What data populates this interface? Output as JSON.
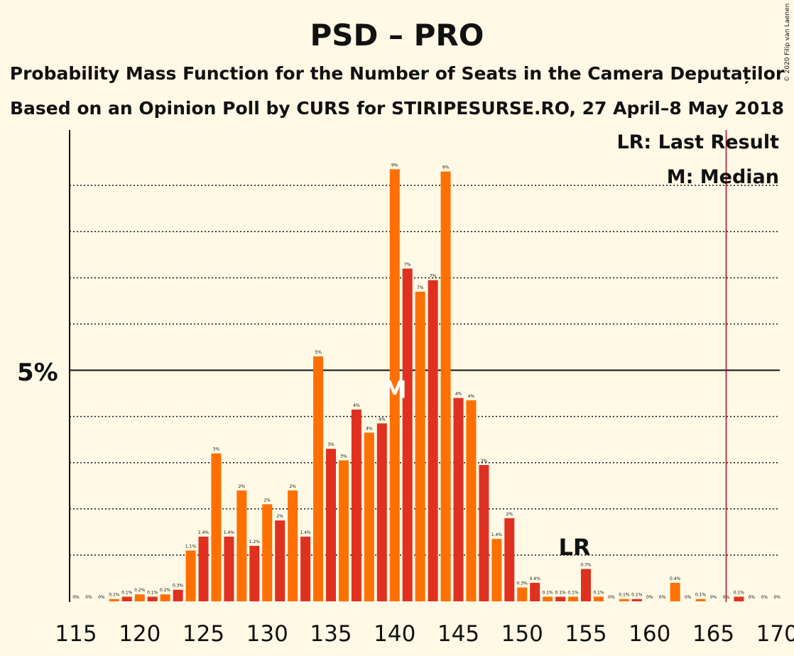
{
  "copyright": "© 2020 Filip van Laenen",
  "chart_data": {
    "type": "bar",
    "title": "PSD – PRO",
    "subtitle1": "Probability Mass Function for the Number of Seats in the Camera Deputaților",
    "subtitle2": "Based on an Opinion Poll by CURS for STIRIPESURSE.RO, 27 April–8 May 2018",
    "legend": [
      "LR: Last Result",
      "M: Median"
    ],
    "y_tick_label": "5%",
    "x_ticks": [
      "115",
      "120",
      "125",
      "130",
      "135",
      "140",
      "145",
      "150",
      "155",
      "160",
      "165",
      "170"
    ],
    "median_marker": "M",
    "median_seat": 140,
    "last_result_marker": "LR",
    "last_result_seat": 154,
    "majority_line_seat": 166,
    "ylim": [
      0,
      10.2
    ],
    "grid": true,
    "colors": {
      "odd": "#e03020",
      "even": "#ff7000",
      "majority": "#c0001a"
    },
    "seats": [
      115,
      116,
      117,
      118,
      119,
      120,
      121,
      122,
      123,
      124,
      125,
      126,
      127,
      128,
      129,
      130,
      131,
      132,
      133,
      134,
      135,
      136,
      137,
      138,
      139,
      140,
      141,
      142,
      143,
      144,
      145,
      146,
      147,
      148,
      149,
      150,
      151,
      152,
      153,
      154,
      155,
      156,
      157,
      158,
      159,
      160,
      161,
      162,
      163,
      164,
      165,
      166,
      167,
      168,
      169,
      170
    ],
    "values": [
      0,
      0,
      0,
      0.05,
      0.1,
      0.15,
      0.1,
      0.15,
      0.25,
      1.1,
      1.4,
      3.2,
      1.4,
      2.4,
      1.2,
      2.1,
      1.75,
      2.4,
      1.4,
      5.3,
      3.3,
      3.05,
      4.15,
      3.65,
      3.85,
      9.35,
      7.2,
      6.7,
      6.95,
      9.3,
      4.4,
      4.35,
      2.95,
      1.35,
      1.8,
      0.3,
      0.4,
      0.1,
      0.1,
      0.1,
      0.7,
      0.1,
      0,
      0.05,
      0.05,
      0,
      0,
      0.4,
      0,
      0.05,
      0,
      0,
      0.1,
      0,
      0,
      0
    ],
    "labels": [
      "0%",
      "0%",
      "0%",
      "0.1%",
      "0.1%",
      "0.2%",
      "0.1%",
      "0.2%",
      "0.3%",
      "1.1%",
      "1.4%",
      "3%",
      "1.4%",
      "2%",
      "1.2%",
      "2%",
      "2%",
      "2%",
      "1.4%",
      "5%",
      "3%",
      "3%",
      "4%",
      "4%",
      "4%",
      "9%",
      "7%",
      "7%",
      "7%",
      "9%",
      "4%",
      "4%",
      "3%",
      "1.4%",
      "2%",
      "0.3%",
      "0.4%",
      "0.1%",
      "0.1%",
      "0.1%",
      "0.7%",
      "0.1%",
      "0%",
      "0.1%",
      "0.1%",
      "0%",
      "0%",
      "0.4%",
      "0%",
      "0.1%",
      "0%",
      "0%",
      "0.1%",
      "0%",
      "0%",
      "0%"
    ]
  }
}
